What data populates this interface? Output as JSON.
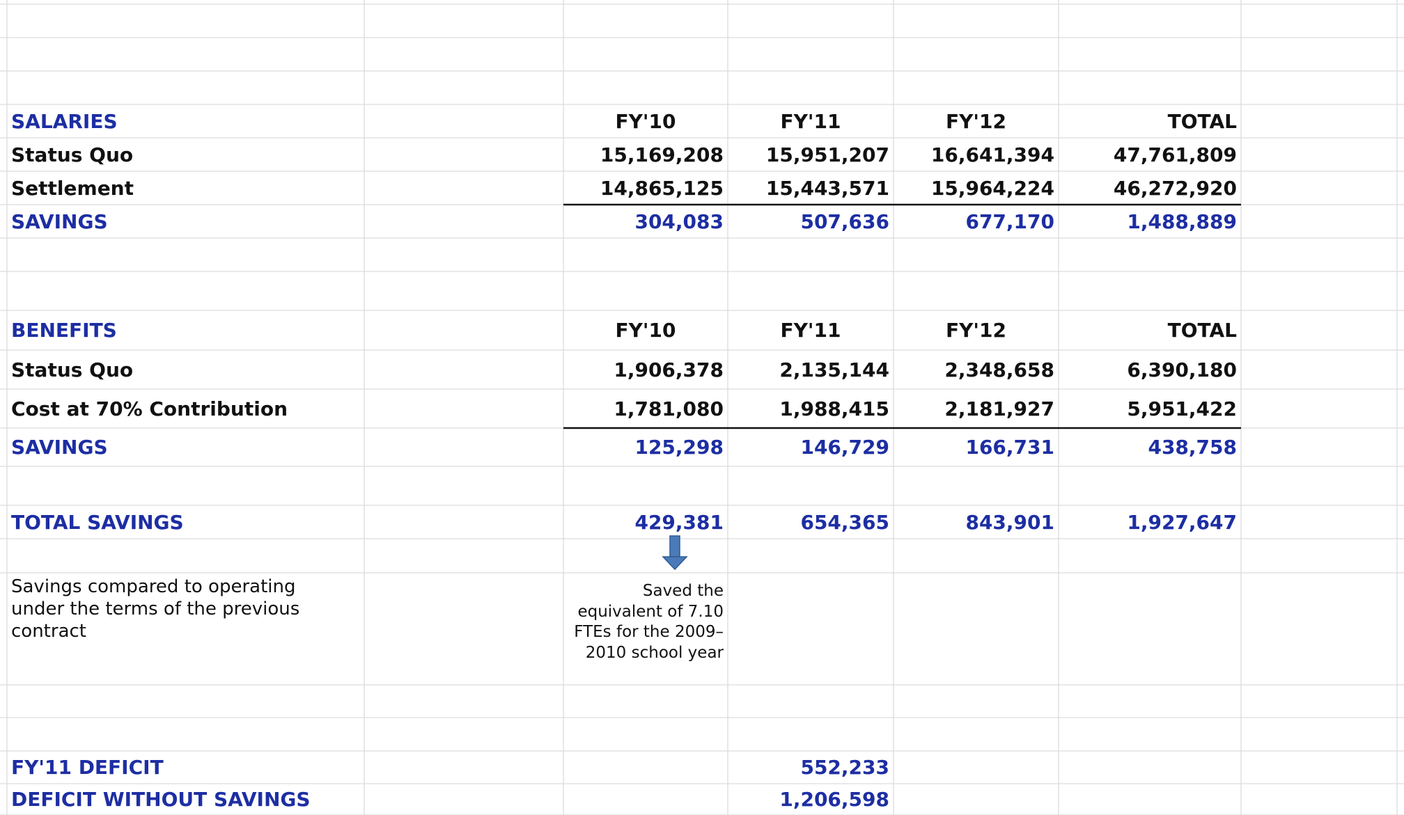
{
  "salaries": {
    "heading": "SALARIES",
    "columns": [
      "FY'10",
      "FY'11",
      "FY'12",
      "TOTAL"
    ],
    "status_quo": {
      "label": "Status Quo",
      "values": [
        "15,169,208",
        "15,951,207",
        "16,641,394",
        "47,761,809"
      ]
    },
    "settlement": {
      "label": "Settlement",
      "values": [
        "14,865,125",
        "15,443,571",
        "15,964,224",
        "46,272,920"
      ]
    },
    "savings": {
      "label": "SAVINGS",
      "values": [
        "304,083",
        "507,636",
        "677,170",
        "1,488,889"
      ]
    }
  },
  "benefits": {
    "heading": "BENEFITS",
    "columns": [
      "FY'10",
      "FY'11",
      "FY'12",
      "TOTAL"
    ],
    "status_quo": {
      "label": "Status Quo",
      "values": [
        "1,906,378",
        "2,135,144",
        "2,348,658",
        "6,390,180"
      ]
    },
    "cost": {
      "label": "Cost at 70% Contribution",
      "values": [
        "1,781,080",
        "1,988,415",
        "2,181,927",
        "5,951,422"
      ]
    },
    "savings": {
      "label": "SAVINGS",
      "values": [
        "125,298",
        "146,729",
        "166,731",
        "438,758"
      ]
    }
  },
  "total_savings": {
    "label": "TOTAL SAVINGS",
    "values": [
      "429,381",
      "654,365",
      "843,901",
      "1,927,647"
    ]
  },
  "description": "Savings compared to operating under the terms of the previous contract",
  "note": "Saved the equivalent of 7.10 FTEs for the 2009–2010 school year",
  "deficit": {
    "label": "FY'11 DEFICIT",
    "value": "552,233"
  },
  "deficit_without_savings": {
    "label": "DEFICIT WITHOUT SAVINGS",
    "value": "1,206,598"
  }
}
